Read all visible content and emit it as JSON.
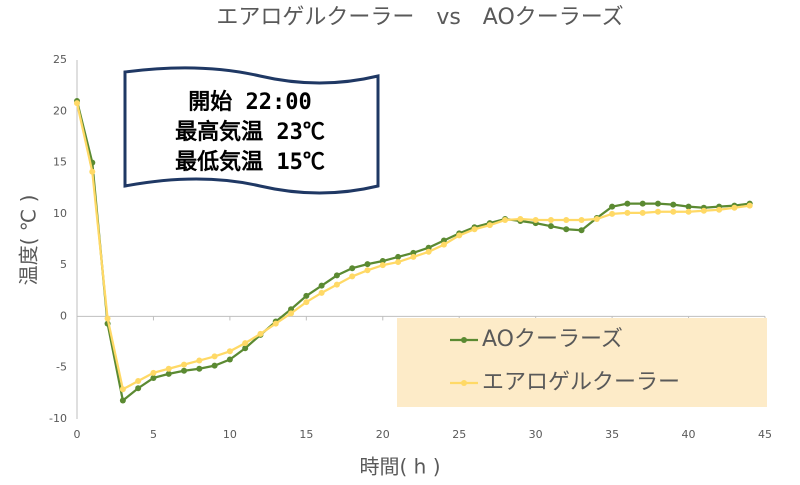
{
  "chart_data": {
    "type": "line",
    "title": "エアロゲルクーラー　vs　AOクーラーズ",
    "xlabel": "時間( h )",
    "ylabel": "温度( ℃ )",
    "annotations": [
      "開始 22:00",
      "最高気温 23℃",
      "最低気温 15℃"
    ],
    "x": [
      0,
      1,
      2,
      3,
      4,
      5,
      6,
      7,
      8,
      9,
      10,
      11,
      12,
      13,
      14,
      15,
      16,
      17,
      18,
      19,
      20,
      21,
      22,
      23,
      24,
      25,
      26,
      27,
      28,
      29,
      30,
      31,
      32,
      33,
      34,
      35,
      36,
      37,
      38,
      39,
      40,
      41,
      42,
      43,
      44
    ],
    "series": [
      {
        "name": "AOクーラーズ",
        "color": "#5b8a32",
        "values": [
          21,
          15,
          -0.7,
          -8.2,
          -7,
          -6,
          -5.6,
          -5.3,
          -5.1,
          -4.8,
          -4.2,
          -3.1,
          -1.8,
          -0.5,
          0.7,
          2,
          3,
          4,
          4.7,
          5.1,
          5.4,
          5.8,
          6.2,
          6.7,
          7.4,
          8.1,
          8.7,
          9.1,
          9.5,
          9.3,
          9.1,
          8.8,
          8.5,
          8.4,
          9.6,
          10.7,
          11,
          11,
          11,
          10.9,
          10.7,
          10.6,
          10.7,
          10.8,
          11
        ]
      },
      {
        "name": "エアロゲルクーラー",
        "color": "#ffd966",
        "values": [
          20.8,
          14.1,
          -0.2,
          -7.1,
          -6.3,
          -5.5,
          -5.1,
          -4.7,
          -4.3,
          -3.9,
          -3.4,
          -2.6,
          -1.7,
          -0.7,
          0.3,
          1.4,
          2.3,
          3.1,
          3.9,
          4.5,
          5,
          5.3,
          5.8,
          6.3,
          7,
          7.9,
          8.5,
          8.9,
          9.4,
          9.5,
          9.4,
          9.4,
          9.4,
          9.4,
          9.5,
          10,
          10.1,
          10.1,
          10.2,
          10.2,
          10.2,
          10.3,
          10.4,
          10.6,
          10.8
        ]
      }
    ],
    "xlim": [
      0,
      45
    ],
    "xticks": [
      0,
      5,
      10,
      15,
      20,
      25,
      30,
      35,
      40,
      45
    ],
    "ylim": [
      -10,
      25
    ],
    "yticks": [
      -10,
      -5,
      0,
      5,
      10,
      15,
      20,
      25
    ],
    "grid": false,
    "legend": "lower right"
  }
}
